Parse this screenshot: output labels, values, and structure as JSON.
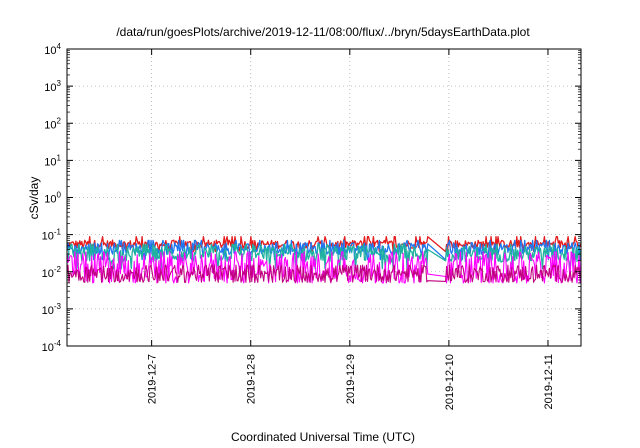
{
  "chart_data": {
    "type": "line",
    "title": "/data/run/goesPlots/archive/2019-12-11/08:00/flux/../bryn/5daysEarthData.plot",
    "xlabel": "Coordinated Universal Time (UTC)",
    "ylabel": "cSv/day",
    "yscale": "log",
    "ylim": [
      0.0001,
      10000
    ],
    "y_ticks": [
      {
        "base": "10",
        "exp": "-4",
        "value": 0.0001
      },
      {
        "base": "10",
        "exp": "-3",
        "value": 0.001
      },
      {
        "base": "10",
        "exp": "-2",
        "value": 0.01
      },
      {
        "base": "10",
        "exp": "-1",
        "value": 0.1
      },
      {
        "base": "10",
        "exp": "0",
        "value": 1
      },
      {
        "base": "10",
        "exp": "1",
        "value": 10
      },
      {
        "base": "10",
        "exp": "2",
        "value": 100
      },
      {
        "base": "10",
        "exp": "3",
        "value": 1000
      },
      {
        "base": "10",
        "exp": "4",
        "value": 10000
      }
    ],
    "xlim": [
      "2019-12-06 03:30",
      "2019-12-11 08:00"
    ],
    "x_ticks": [
      "2019-12-7",
      "2019-12-8",
      "2019-12-9",
      "2019-12-10",
      "2019-12-11"
    ],
    "x_tick_dates": [
      "2019-12-07",
      "2019-12-08",
      "2019-12-09",
      "2019-12-10",
      "2019-12-11"
    ],
    "grid": true,
    "legend": "none",
    "data_gap": [
      "2019-12-09 19:00",
      "2019-12-09 23:00"
    ],
    "series": [
      {
        "color": "#e41a1c",
        "approx_level": 0.055,
        "range": [
          0.035,
          0.09
        ]
      },
      {
        "color": "#1f77f0",
        "approx_level": 0.042,
        "range": [
          0.018,
          0.07
        ]
      },
      {
        "color": "#20b2a0",
        "approx_level": 0.03,
        "range": [
          0.009,
          0.055
        ]
      },
      {
        "color": "#ff00ff",
        "approx_level": 0.013,
        "range": [
          0.005,
          0.035
        ]
      },
      {
        "color": "#c00080",
        "approx_level": 0.009,
        "range": [
          0.005,
          0.015
        ]
      }
    ]
  }
}
